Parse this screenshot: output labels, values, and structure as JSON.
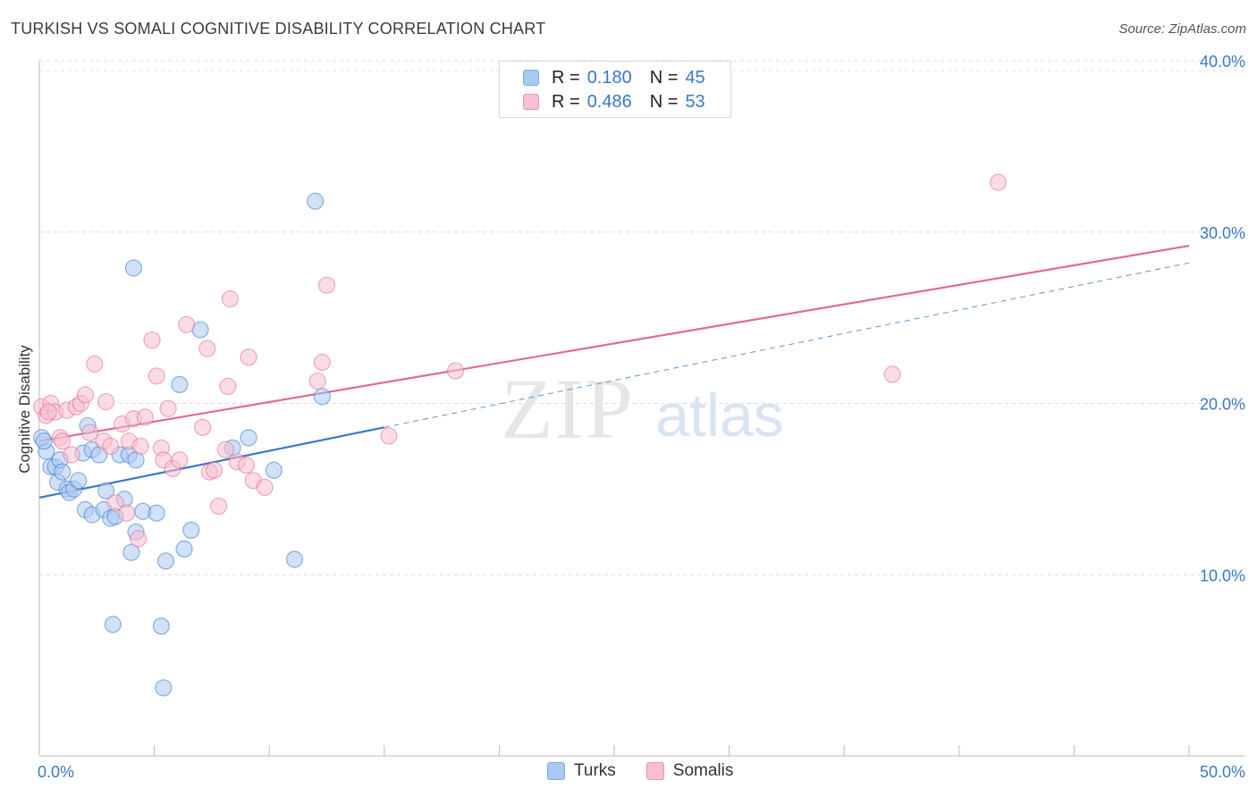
{
  "title": "TURKISH VS SOMALI COGNITIVE DISABILITY CORRELATION CHART",
  "source": "Source: ZipAtlas.com",
  "legend": {
    "rows": [
      {
        "r_label": "R =",
        "r_value": "0.180",
        "n_label": "N =",
        "n_value": "45",
        "color": "#a9c9f2",
        "border": "#7aa9e2"
      },
      {
        "r_label": "R =",
        "r_value": "0.486",
        "n_label": "N =",
        "n_value": "53",
        "color": "#f7bfd0",
        "border": "#ec93ae"
      }
    ]
  },
  "bottom_legend": [
    {
      "label": "Turks",
      "color": "#a9c9f2",
      "border": "#7aa9e2"
    },
    {
      "label": "Somalis",
      "color": "#f7bfd0",
      "border": "#ec93ae"
    }
  ],
  "watermark": {
    "zip": "ZIP",
    "atlas": "atlas"
  },
  "chart_data": {
    "type": "scatter",
    "title": "TURKISH VS SOMALI COGNITIVE DISABILITY CORRELATION CHART",
    "xlabel": "",
    "ylabel": "Cognitive Disability",
    "xlim": [
      0,
      50
    ],
    "ylim": [
      0,
      40
    ],
    "x_tick_labels": [
      "0.0%",
      "50.0%"
    ],
    "y_ticks": [
      10,
      20,
      30,
      40
    ],
    "y_tick_labels": [
      "10.0%",
      "20.0%",
      "30.0%",
      "40.0%"
    ],
    "grid": true,
    "series": [
      {
        "name": "Turks",
        "color": "#3a78c9",
        "fill": "#a9c9f2",
        "r": 0.18,
        "n": 45,
        "trend": {
          "x0": 0.0,
          "y0": 14.5,
          "x1": 15.0,
          "y1": 18.6
        },
        "trend_ext": {
          "x0": 15.0,
          "y0": 18.6,
          "x1": 50.0,
          "y1": 28.2
        },
        "points": [
          [
            0.1,
            18.0
          ],
          [
            0.3,
            17.2
          ],
          [
            0.5,
            16.3
          ],
          [
            0.7,
            16.3
          ],
          [
            0.9,
            16.7
          ],
          [
            0.8,
            15.4
          ],
          [
            1.2,
            15.0
          ],
          [
            1.3,
            14.8
          ],
          [
            1.5,
            15.0
          ],
          [
            1.7,
            15.5
          ],
          [
            1.9,
            17.1
          ],
          [
            2.1,
            18.7
          ],
          [
            2.3,
            17.3
          ],
          [
            2.6,
            17.0
          ],
          [
            2.0,
            13.8
          ],
          [
            2.3,
            13.5
          ],
          [
            2.8,
            13.8
          ],
          [
            3.1,
            13.3
          ],
          [
            3.3,
            13.4
          ],
          [
            2.9,
            14.9
          ],
          [
            3.7,
            14.4
          ],
          [
            3.5,
            17.0
          ],
          [
            3.9,
            17.0
          ],
          [
            4.2,
            16.7
          ],
          [
            4.2,
            12.5
          ],
          [
            4.5,
            13.7
          ],
          [
            5.1,
            13.6
          ],
          [
            4.0,
            11.3
          ],
          [
            5.5,
            10.8
          ],
          [
            6.3,
            11.5
          ],
          [
            6.6,
            12.6
          ],
          [
            6.1,
            21.1
          ],
          [
            7.0,
            24.3
          ],
          [
            8.4,
            17.4
          ],
          [
            9.1,
            18.0
          ],
          [
            10.2,
            16.1
          ],
          [
            11.1,
            10.9
          ],
          [
            12.0,
            31.8
          ],
          [
            12.3,
            20.4
          ],
          [
            4.1,
            27.9
          ],
          [
            3.2,
            7.1
          ],
          [
            5.3,
            7.0
          ],
          [
            5.4,
            3.4
          ],
          [
            0.2,
            17.8
          ],
          [
            1.0,
            16.0
          ]
        ]
      },
      {
        "name": "Somalis",
        "color": "#e06b92",
        "fill": "#f7bfd0",
        "r": 0.486,
        "n": 53,
        "trend": {
          "x0": 0.0,
          "y0": 17.8,
          "x1": 50.0,
          "y1": 29.2
        },
        "points": [
          [
            0.1,
            19.8
          ],
          [
            0.3,
            19.3
          ],
          [
            0.5,
            20.0
          ],
          [
            0.7,
            19.5
          ],
          [
            0.9,
            18.0
          ],
          [
            1.0,
            17.8
          ],
          [
            1.2,
            19.6
          ],
          [
            1.4,
            17.0
          ],
          [
            1.6,
            19.8
          ],
          [
            1.8,
            20.0
          ],
          [
            2.0,
            20.5
          ],
          [
            2.2,
            18.3
          ],
          [
            2.4,
            22.3
          ],
          [
            2.8,
            17.8
          ],
          [
            2.9,
            20.1
          ],
          [
            3.1,
            17.5
          ],
          [
            3.3,
            14.2
          ],
          [
            3.6,
            18.8
          ],
          [
            3.8,
            13.6
          ],
          [
            3.9,
            17.8
          ],
          [
            4.1,
            19.1
          ],
          [
            4.3,
            12.1
          ],
          [
            4.4,
            17.5
          ],
          [
            4.6,
            19.2
          ],
          [
            4.9,
            23.7
          ],
          [
            5.1,
            21.6
          ],
          [
            5.3,
            17.4
          ],
          [
            5.4,
            16.7
          ],
          [
            5.6,
            19.7
          ],
          [
            5.8,
            16.2
          ],
          [
            6.1,
            16.7
          ],
          [
            6.4,
            24.6
          ],
          [
            7.1,
            18.6
          ],
          [
            7.3,
            23.2
          ],
          [
            7.4,
            16.0
          ],
          [
            7.6,
            16.1
          ],
          [
            7.8,
            14.0
          ],
          [
            8.1,
            17.3
          ],
          [
            8.2,
            21.0
          ],
          [
            8.3,
            26.1
          ],
          [
            8.6,
            16.6
          ],
          [
            9.0,
            16.4
          ],
          [
            9.1,
            22.7
          ],
          [
            9.3,
            15.5
          ],
          [
            9.8,
            15.1
          ],
          [
            12.1,
            21.3
          ],
          [
            12.3,
            22.4
          ],
          [
            12.5,
            26.9
          ],
          [
            15.2,
            18.1
          ],
          [
            18.1,
            21.9
          ],
          [
            37.1,
            21.7
          ],
          [
            41.7,
            32.9
          ],
          [
            0.4,
            19.5
          ]
        ]
      }
    ]
  }
}
